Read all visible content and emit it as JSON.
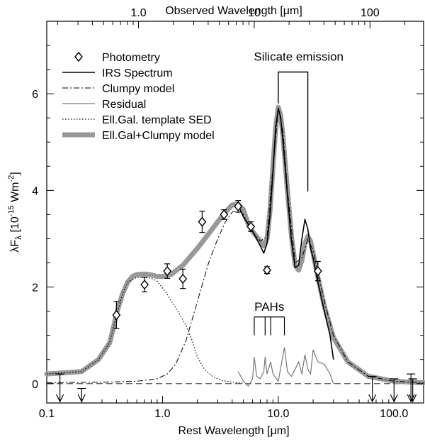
{
  "chart_data": {
    "type": "line",
    "x_scale": "log",
    "xlim": [
      0.1,
      180
    ],
    "ylim": [
      -0.4,
      7.5
    ],
    "xlabel": "Rest Wavelength [μm]",
    "ylabel_main": "λF",
    "ylabel_sub": "λ",
    "ylabel_unit": " [10",
    "ylabel_exp": "-15",
    "ylabel_unit2": " Wm",
    "ylabel_exp2": "-2",
    "ylabel_end": "]",
    "x2label": "Observed Wavelength [μm]",
    "x2_ticks": [
      {
        "label": "1.0",
        "rest": 0.62
      },
      {
        "label": "10",
        "rest": 6.2
      },
      {
        "label": "100",
        "rest": 62
      }
    ],
    "x_ticks": [
      {
        "value": 0.1,
        "label": "0.1"
      },
      {
        "value": 1,
        "label": "1.0"
      },
      {
        "value": 10,
        "label": "10.0"
      },
      {
        "value": 100,
        "label": "100.0"
      }
    ],
    "y_ticks": [
      {
        "value": 0,
        "label": "0"
      },
      {
        "value": 2,
        "label": "2"
      },
      {
        "value": 4,
        "label": "4"
      },
      {
        "value": 6,
        "label": "6"
      }
    ],
    "legend": [
      {
        "label": "Photometry",
        "style": "diamond"
      },
      {
        "label": "IRS Spectrum",
        "style": "solid-black"
      },
      {
        "label": "Clumpy model",
        "style": "dashdot"
      },
      {
        "label": "Residual",
        "style": "thin-gray"
      },
      {
        "label": "Ell.Gal. template SED",
        "style": "dotted"
      },
      {
        "label": "Ell.Gal+Clumpy model",
        "style": "thick-gray"
      }
    ],
    "annotations": {
      "silicate": "Silicate emission",
      "silicate_range": [
        10,
        18
      ],
      "pahs": "PAHs",
      "pah_lines": [
        6.2,
        7.7,
        8.6,
        11.3
      ]
    },
    "series": [
      {
        "name": "Photometry",
        "type": "points",
        "points": [
          {
            "x": 0.4,
            "y": 1.42,
            "err": 0.28
          },
          {
            "x": 0.7,
            "y": 2.05,
            "err": 0.15
          },
          {
            "x": 1.1,
            "y": 2.33,
            "err": 0.15
          },
          {
            "x": 1.5,
            "y": 2.17,
            "err": 0.2
          },
          {
            "x": 2.2,
            "y": 3.35,
            "err": 0.22
          },
          {
            "x": 3.4,
            "y": 3.5,
            "err": 0.1
          },
          {
            "x": 4.5,
            "y": 3.67,
            "err": 0.12
          },
          {
            "x": 5.8,
            "y": 3.25,
            "err": 0.1
          },
          {
            "x": 8.0,
            "y": 2.35,
            "err": 0.07
          },
          {
            "x": 22,
            "y": 2.33,
            "err": 0.2
          }
        ]
      },
      {
        "name": "Upper limits",
        "type": "limits",
        "points": [
          {
            "x": 0.13,
            "y": 0.2
          },
          {
            "x": 0.2,
            "y": -0.1
          },
          {
            "x": 65,
            "y": 0.15
          },
          {
            "x": 100,
            "y": 0.1
          },
          {
            "x": 140,
            "y": 0.2
          },
          {
            "x": 145,
            "y": 0.1
          }
        ]
      },
      {
        "name": "Ell.Gal+Clumpy model",
        "x": [
          0.1,
          0.2,
          0.28,
          0.35,
          0.38,
          0.4,
          0.45,
          0.5,
          0.55,
          0.6,
          0.7,
          0.8,
          0.9,
          1.0,
          1.2,
          1.5,
          2.0,
          2.5,
          3.0,
          3.5,
          4.0,
          4.5,
          5.0,
          5.5,
          6.0,
          7.0,
          7.5,
          8.0,
          8.5,
          9.0,
          9.5,
          10.0,
          10.5,
          11.0,
          12.0,
          13.0,
          14.0,
          15.0,
          16.0,
          17.0,
          18.0,
          19.0,
          20.0,
          22.0,
          25.0,
          30.0,
          40.0,
          60.0,
          100.0,
          180.0
        ],
        "y": [
          0.2,
          0.25,
          0.5,
          0.85,
          1.2,
          1.45,
          1.85,
          2.1,
          2.22,
          2.26,
          2.27,
          2.25,
          2.22,
          2.22,
          2.27,
          2.45,
          2.8,
          3.1,
          3.35,
          3.55,
          3.7,
          3.72,
          3.6,
          3.3,
          3.15,
          2.95,
          2.85,
          3.0,
          3.6,
          4.5,
          5.3,
          5.72,
          5.55,
          5.1,
          4.0,
          3.05,
          2.45,
          2.35,
          2.55,
          2.9,
          3.05,
          2.95,
          2.7,
          2.2,
          1.6,
          0.95,
          0.45,
          0.15,
          0.05,
          0.02
        ]
      },
      {
        "name": "Clumpy model",
        "x": [
          0.1,
          0.3,
          0.6,
          0.9,
          1.1,
          1.3,
          1.6,
          2.0,
          2.5,
          3.0,
          3.5,
          4.0,
          4.5,
          5.0,
          5.5,
          6.0,
          7.0,
          8.0,
          9.0,
          10.0,
          11.0,
          12.0,
          14.0,
          16.0,
          18.0,
          20.0,
          25.0,
          30.0,
          40.0,
          60.0,
          100.0,
          180.0
        ],
        "y": [
          0.02,
          0.03,
          0.05,
          0.1,
          0.2,
          0.4,
          0.9,
          1.7,
          2.5,
          3.0,
          3.35,
          3.55,
          3.6,
          3.5,
          3.3,
          3.15,
          2.95,
          3.05,
          4.5,
          5.7,
          5.2,
          4.0,
          2.5,
          2.6,
          3.0,
          2.75,
          1.7,
          1.0,
          0.45,
          0.15,
          0.05,
          0.02
        ]
      },
      {
        "name": "Ell.Gal. template SED",
        "x": [
          0.1,
          0.2,
          0.28,
          0.35,
          0.4,
          0.45,
          0.5,
          0.6,
          0.7,
          0.8,
          0.9,
          1.0,
          1.1,
          1.2,
          1.4,
          1.6,
          1.8,
          2.0,
          2.3,
          2.7,
          3.2,
          4.0,
          5.0
        ],
        "y": [
          0.2,
          0.25,
          0.5,
          0.85,
          1.4,
          1.85,
          2.1,
          2.2,
          2.2,
          2.18,
          2.12,
          1.98,
          1.85,
          1.7,
          1.45,
          1.2,
          0.9,
          0.55,
          0.3,
          0.15,
          0.07,
          0.03,
          0.01
        ]
      },
      {
        "name": "IRS Spectrum",
        "x": [
          4.5,
          5.0,
          5.5,
          6.0,
          6.5,
          7.0,
          7.5,
          8.0,
          8.5,
          9.0,
          9.5,
          10.0,
          10.5,
          11.0,
          12.0,
          13.0,
          14.0,
          15.0,
          16.0,
          17.0,
          18.0,
          19.0,
          20.0,
          22.0,
          25.0,
          28.0,
          30.0
        ],
        "y": [
          3.7,
          3.45,
          3.3,
          3.15,
          3.0,
          2.85,
          2.7,
          2.9,
          3.5,
          4.4,
          5.3,
          5.7,
          5.5,
          5.0,
          3.9,
          2.95,
          2.4,
          2.45,
          3.0,
          3.4,
          3.2,
          2.8,
          2.6,
          2.1,
          1.5,
          1.0,
          0.5
        ]
      },
      {
        "name": "Residual",
        "x": [
          4.5,
          5.0,
          5.5,
          6.0,
          6.2,
          6.5,
          7.0,
          7.5,
          7.7,
          8.0,
          8.6,
          9.0,
          10.0,
          11.3,
          12.0,
          13.0,
          14.0,
          15.0,
          16.0,
          17.0,
          18.0,
          19.0,
          20.0,
          22.0,
          25.0,
          28.0,
          30.0
        ],
        "y": [
          0.25,
          0.05,
          -0.05,
          0.1,
          0.55,
          0.15,
          0.1,
          0.25,
          0.55,
          0.2,
          0.45,
          0.2,
          0.05,
          0.75,
          0.25,
          0.15,
          0.3,
          0.45,
          0.2,
          0.6,
          0.3,
          0.2,
          0.7,
          0.45,
          0.4,
          0.2,
          0.0
        ]
      }
    ]
  }
}
